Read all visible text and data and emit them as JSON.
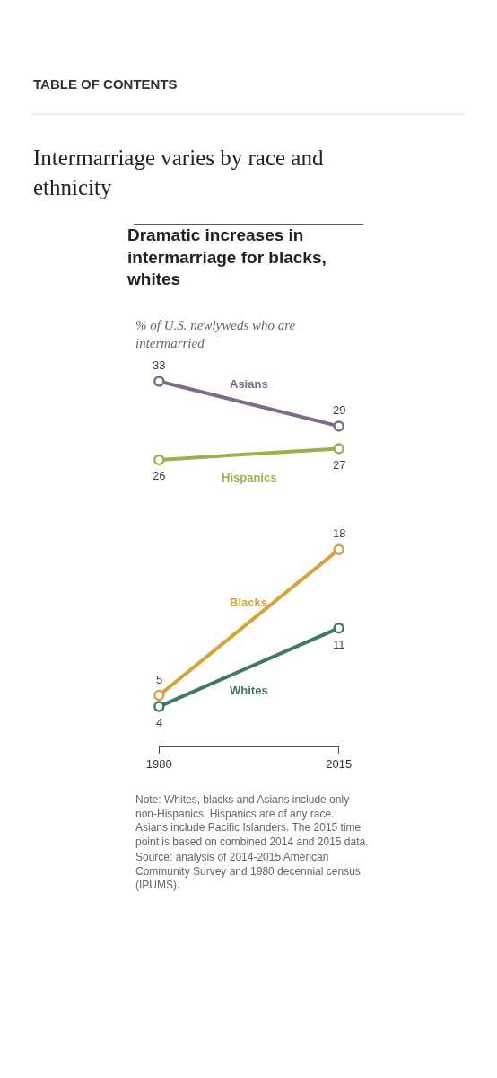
{
  "chart_data": {
    "type": "line",
    "title": "Dramatic increases in intermarriage for blacks, whites",
    "subtitle": "% of U.S. newlyweds who are intermarried",
    "x": [
      1980,
      2015
    ],
    "xlim": [
      1980,
      2015
    ],
    "xticks": [
      1980,
      2015
    ],
    "series": [
      {
        "name": "Asians",
        "color": "#7b6c8c",
        "values": [
          33,
          29
        ]
      },
      {
        "name": "Hispanics",
        "color": "#a3ad4f",
        "values": [
          26,
          27
        ]
      },
      {
        "name": "Blacks",
        "color": "#d4a43a",
        "values": [
          5,
          18
        ]
      },
      {
        "name": "Whites",
        "color": "#3f7a69",
        "values": [
          4,
          11
        ]
      }
    ],
    "marker": "circle",
    "line_style": "solid",
    "data_labels": true,
    "legend": false,
    "tick_labels": "x",
    "annotations": [
      "TABLE OF CONTENTS",
      "Intermarriage varies by race and ethnicity",
      "Note: Whites, blacks and Asians include only non-Hispanics. Hispanics are of any race. Asians include Pacific Islanders. The 2015 time point is based on combined 2014 and 2015 data.",
      "Source: analysis of 2014-2015 American Community Survey and 1980 decennial census (IPUMS)."
    ]
  }
}
